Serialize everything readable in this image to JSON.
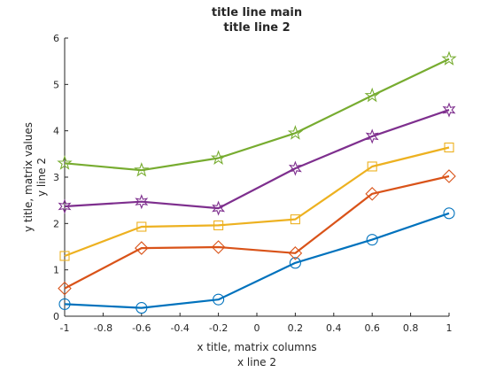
{
  "chart_data": {
    "type": "line",
    "title": [
      "title line main",
      "title line 2"
    ],
    "xlabel": [
      "x title, matrix columns",
      "x line 2"
    ],
    "ylabel": [
      "y title, matrix values",
      "y line 2"
    ],
    "xlim": [
      -1,
      1
    ],
    "ylim": [
      0,
      6
    ],
    "xticks": [
      -1,
      -0.8,
      -0.6,
      -0.4,
      -0.2,
      0,
      0.2,
      0.4,
      0.6,
      0.8,
      1
    ],
    "xtick_labels": [
      "-1",
      "-0.8",
      "-0.6",
      "-0.4",
      "-0.2",
      "0",
      "0.2",
      "0.4",
      "0.6",
      "0.8",
      "1"
    ],
    "yticks": [
      0,
      1,
      2,
      3,
      4,
      5,
      6
    ],
    "ytick_labels": [
      "0",
      "1",
      "2",
      "3",
      "4",
      "5",
      "6"
    ],
    "grid": false,
    "x": [
      -1,
      -0.6,
      -0.2,
      0.2,
      0.6,
      1
    ],
    "series": [
      {
        "color": "#0072BD",
        "marker": "circle",
        "values": [
          0.26,
          0.18,
          0.36,
          1.15,
          1.65,
          2.22
        ]
      },
      {
        "color": "#D95319",
        "marker": "diamond",
        "values": [
          0.6,
          1.47,
          1.49,
          1.36,
          2.64,
          3.02
        ]
      },
      {
        "color": "#EDB120",
        "marker": "square",
        "values": [
          1.3,
          1.93,
          1.96,
          2.09,
          3.23,
          3.64
        ]
      },
      {
        "color": "#7E2F8E",
        "marker": "star6",
        "values": [
          2.37,
          2.47,
          2.33,
          3.19,
          3.88,
          4.45
        ]
      },
      {
        "color": "#77AC30",
        "marker": "star5",
        "values": [
          3.3,
          3.15,
          3.41,
          3.95,
          4.76,
          5.55
        ]
      }
    ]
  }
}
